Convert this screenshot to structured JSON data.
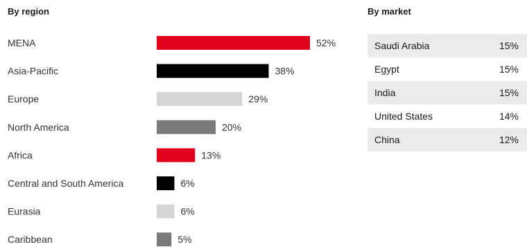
{
  "headings": {
    "region": "By region",
    "market": "By market"
  },
  "chart_data": {
    "type": "bar",
    "orientation": "horizontal",
    "title": "By region",
    "categories": [
      "MENA",
      "Asia-Pacific",
      "Europe",
      "North America",
      "Africa",
      "Central and South America",
      "Eurasia",
      "Caribbean"
    ],
    "values": [
      52,
      38,
      29,
      20,
      13,
      6,
      6,
      5
    ],
    "value_labels": [
      "52%",
      "38%",
      "29%",
      "20%",
      "13%",
      "6%",
      "6%",
      "5%"
    ],
    "bar_colors": [
      "#e0001b",
      "#000000",
      "#d6d6d6",
      "#7a7a7a",
      "#e0001b",
      "#000000",
      "#d6d6d6",
      "#7a7a7a"
    ],
    "unit": "%",
    "xlim": [
      0,
      52
    ],
    "grid": false,
    "legend": "none"
  },
  "market_table": {
    "title": "By market",
    "rows": [
      {
        "country": "Saudi Arabia",
        "value": "15%"
      },
      {
        "country": "Egypt",
        "value": "15%"
      },
      {
        "country": "India",
        "value": "15%"
      },
      {
        "country": "United States",
        "value": "14%"
      },
      {
        "country": "China",
        "value": "12%"
      }
    ]
  }
}
